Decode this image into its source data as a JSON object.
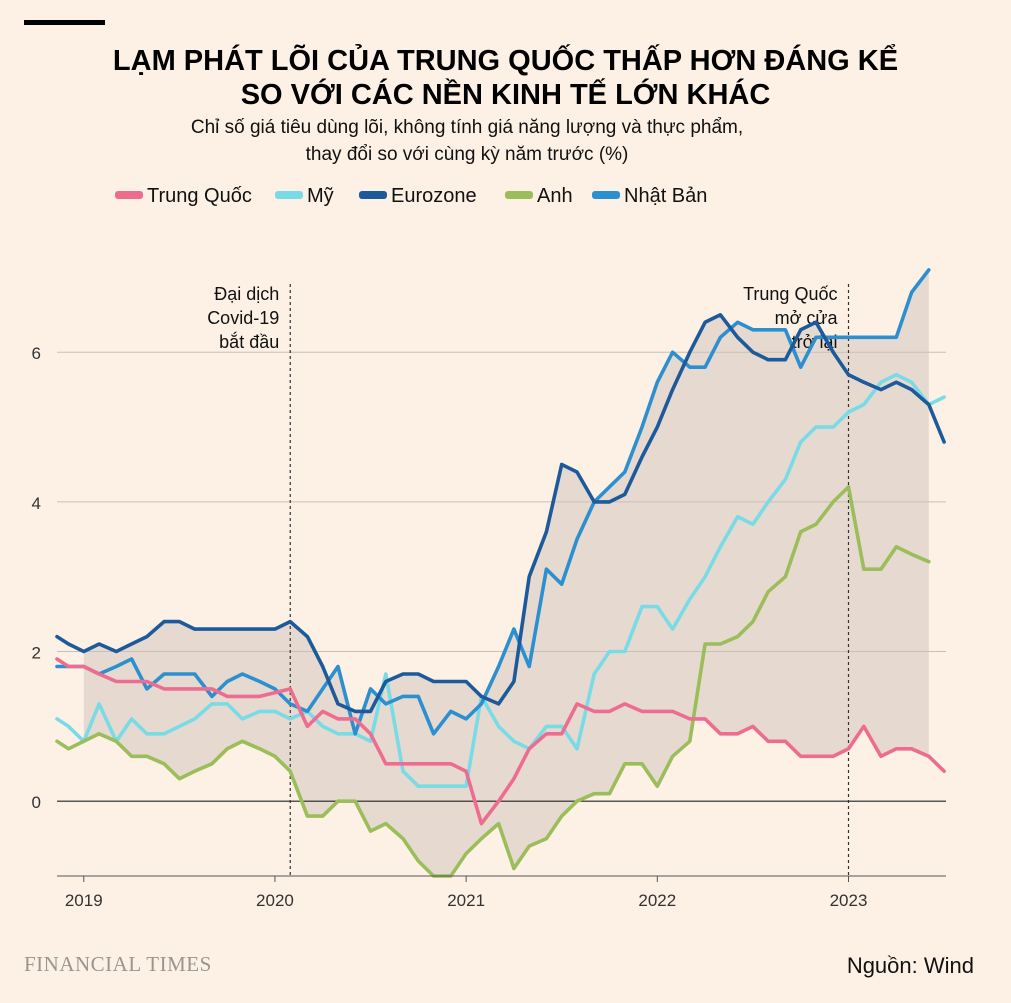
{
  "title_line1": "LẠM PHÁT LÕI CỦA TRUNG QUỐC THẤP HƠN ĐÁNG KỂ",
  "title_line2": "SO VỚI CÁC NỀN KINH TẾ LỚN KHÁC",
  "subtitle_line1": "Chỉ số giá tiêu dùng lõi, không tính giá năng lượng và thực phẩm,",
  "subtitle_line2": "thay đổi so với cùng kỳ năm trước (%)",
  "source": "Nguồn: Wind",
  "brand": "FINANCIAL TIMES",
  "chart_data": {
    "type": "line",
    "title": "LẠM PHÁT LÕI CỦA TRUNG QUỐC THẤP HƠN ĐÁNG KỂ SO VỚI CÁC NỀN KINH TẾ LỚN KHÁC",
    "ylabel": "%",
    "xlim": [
      2018.86,
      2023.51
    ],
    "ylim": [
      -1.0,
      7.5
    ],
    "y_ticks": [
      0,
      2,
      4,
      6
    ],
    "x_ticks": [
      {
        "label": "2019",
        "value": 2019
      },
      {
        "label": "2020",
        "value": 2020
      },
      {
        "label": "2021",
        "value": 2021
      },
      {
        "label": "2022",
        "value": 2022
      },
      {
        "label": "2023",
        "value": 2023
      }
    ],
    "shaded_range": "area between the highest and lowest series values, Jan 2019 – Jun 2023",
    "annotations": [
      {
        "x": 2020.08,
        "lines": [
          "Đại dịch",
          "Covid-19",
          "bắt đầu"
        ],
        "align": "left"
      },
      {
        "x": 2023.0,
        "lines": [
          "Trung Quốc",
          "mở cửa",
          "trở lại"
        ],
        "align": "left"
      }
    ],
    "series": [
      {
        "name": "Trung Quốc",
        "color": "#ed6d91",
        "points": [
          [
            2018.86,
            1.9
          ],
          [
            2018.92,
            1.8
          ],
          [
            2019.0,
            1.8
          ],
          [
            2019.08,
            1.7
          ],
          [
            2019.17,
            1.6
          ],
          [
            2019.33,
            1.6
          ],
          [
            2019.42,
            1.5
          ],
          [
            2019.58,
            1.5
          ],
          [
            2019.67,
            1.5
          ],
          [
            2019.75,
            1.4
          ],
          [
            2019.92,
            1.4
          ],
          [
            2020.08,
            1.5
          ],
          [
            2020.17,
            1.0
          ],
          [
            2020.25,
            1.2
          ],
          [
            2020.33,
            1.1
          ],
          [
            2020.42,
            1.1
          ],
          [
            2020.5,
            0.9
          ],
          [
            2020.58,
            0.5
          ],
          [
            2020.67,
            0.5
          ],
          [
            2020.75,
            0.5
          ],
          [
            2020.83,
            0.5
          ],
          [
            2020.92,
            0.5
          ],
          [
            2021.0,
            0.4
          ],
          [
            2021.08,
            -0.3
          ],
          [
            2021.17,
            0.0
          ],
          [
            2021.25,
            0.3
          ],
          [
            2021.33,
            0.7
          ],
          [
            2021.42,
            0.9
          ],
          [
            2021.5,
            0.9
          ],
          [
            2021.58,
            1.3
          ],
          [
            2021.67,
            1.2
          ],
          [
            2021.75,
            1.2
          ],
          [
            2021.83,
            1.3
          ],
          [
            2021.92,
            1.2
          ],
          [
            2022.0,
            1.2
          ],
          [
            2022.08,
            1.2
          ],
          [
            2022.17,
            1.1
          ],
          [
            2022.25,
            1.1
          ],
          [
            2022.33,
            0.9
          ],
          [
            2022.42,
            0.9
          ],
          [
            2022.5,
            1.0
          ],
          [
            2022.58,
            0.8
          ],
          [
            2022.67,
            0.8
          ],
          [
            2022.75,
            0.6
          ],
          [
            2022.83,
            0.6
          ],
          [
            2022.92,
            0.6
          ],
          [
            2023.0,
            0.7
          ],
          [
            2023.08,
            1.0
          ],
          [
            2023.17,
            0.6
          ],
          [
            2023.25,
            0.7
          ],
          [
            2023.33,
            0.7
          ],
          [
            2023.42,
            0.6
          ],
          [
            2023.5,
            0.4
          ]
        ]
      },
      {
        "name": "Mỹ",
        "color": "#79dbe6",
        "points": [
          [
            2018.86,
            1.1
          ],
          [
            2018.92,
            1.0
          ],
          [
            2019.0,
            0.8
          ],
          [
            2019.08,
            1.3
          ],
          [
            2019.17,
            0.8
          ],
          [
            2019.25,
            1.1
          ],
          [
            2019.33,
            0.9
          ],
          [
            2019.42,
            0.9
          ],
          [
            2019.5,
            1.0
          ],
          [
            2019.58,
            1.1
          ],
          [
            2019.67,
            1.3
          ],
          [
            2019.75,
            1.3
          ],
          [
            2019.83,
            1.1
          ],
          [
            2019.92,
            1.2
          ],
          [
            2020.0,
            1.2
          ],
          [
            2020.08,
            1.1
          ],
          [
            2020.17,
            1.2
          ],
          [
            2020.25,
            1.0
          ],
          [
            2020.33,
            0.9
          ],
          [
            2020.42,
            0.9
          ],
          [
            2020.5,
            0.8
          ],
          [
            2020.58,
            1.7
          ],
          [
            2020.67,
            0.4
          ],
          [
            2020.75,
            0.2
          ],
          [
            2020.83,
            0.2
          ],
          [
            2020.92,
            0.2
          ],
          [
            2021.0,
            0.2
          ],
          [
            2021.08,
            1.4
          ],
          [
            2021.17,
            1.0
          ],
          [
            2021.25,
            0.8
          ],
          [
            2021.33,
            0.7
          ],
          [
            2021.42,
            1.0
          ],
          [
            2021.5,
            1.0
          ],
          [
            2021.58,
            0.7
          ],
          [
            2021.67,
            1.7
          ],
          [
            2021.75,
            2.0
          ],
          [
            2021.83,
            2.0
          ],
          [
            2021.92,
            2.6
          ],
          [
            2022.0,
            2.6
          ],
          [
            2022.08,
            2.3
          ],
          [
            2022.17,
            2.7
          ],
          [
            2022.25,
            3.0
          ],
          [
            2022.33,
            3.4
          ],
          [
            2022.42,
            3.8
          ],
          [
            2022.5,
            3.7
          ],
          [
            2022.58,
            4.0
          ],
          [
            2022.67,
            4.3
          ],
          [
            2022.75,
            4.8
          ],
          [
            2022.83,
            5.0
          ],
          [
            2022.92,
            5.0
          ],
          [
            2023.0,
            5.2
          ],
          [
            2023.08,
            5.3
          ],
          [
            2023.17,
            5.6
          ],
          [
            2023.25,
            5.7
          ],
          [
            2023.33,
            5.6
          ],
          [
            2023.42,
            5.3
          ],
          [
            2023.5,
            5.4
          ]
        ]
      },
      {
        "name": "Eurozone",
        "color": "#1d5a9b",
        "points": [
          [
            2018.86,
            2.2
          ],
          [
            2018.92,
            2.1
          ],
          [
            2019.0,
            2.0
          ],
          [
            2019.08,
            2.1
          ],
          [
            2019.17,
            2.0
          ],
          [
            2019.25,
            2.1
          ],
          [
            2019.33,
            2.2
          ],
          [
            2019.42,
            2.4
          ],
          [
            2019.5,
            2.4
          ],
          [
            2019.58,
            2.3
          ],
          [
            2019.67,
            2.3
          ],
          [
            2019.75,
            2.3
          ],
          [
            2019.83,
            2.3
          ],
          [
            2019.92,
            2.3
          ],
          [
            2020.0,
            2.3
          ],
          [
            2020.08,
            2.4
          ],
          [
            2020.17,
            2.2
          ],
          [
            2020.25,
            1.8
          ],
          [
            2020.33,
            1.3
          ],
          [
            2020.42,
            1.2
          ],
          [
            2020.5,
            1.2
          ],
          [
            2020.58,
            1.6
          ],
          [
            2020.67,
            1.7
          ],
          [
            2020.75,
            1.7
          ],
          [
            2020.83,
            1.6
          ],
          [
            2020.92,
            1.6
          ],
          [
            2021.0,
            1.6
          ],
          [
            2021.08,
            1.4
          ],
          [
            2021.17,
            1.3
          ],
          [
            2021.25,
            1.6
          ],
          [
            2021.33,
            3.0
          ],
          [
            2021.42,
            3.6
          ],
          [
            2021.5,
            4.5
          ],
          [
            2021.58,
            4.4
          ],
          [
            2021.67,
            4.0
          ],
          [
            2021.75,
            4.0
          ],
          [
            2021.83,
            4.1
          ],
          [
            2021.92,
            4.6
          ],
          [
            2022.0,
            5.0
          ],
          [
            2022.08,
            5.5
          ],
          [
            2022.17,
            6.0
          ],
          [
            2022.25,
            6.4
          ],
          [
            2022.33,
            6.5
          ],
          [
            2022.42,
            6.2
          ],
          [
            2022.5,
            6.0
          ],
          [
            2022.58,
            5.9
          ],
          [
            2022.67,
            5.9
          ],
          [
            2022.75,
            6.3
          ],
          [
            2022.83,
            6.4
          ],
          [
            2022.92,
            6.0
          ],
          [
            2023.0,
            5.7
          ],
          [
            2023.08,
            5.6
          ],
          [
            2023.17,
            5.5
          ],
          [
            2023.25,
            5.6
          ],
          [
            2023.33,
            5.5
          ],
          [
            2023.42,
            5.3
          ],
          [
            2023.5,
            4.8
          ]
        ]
      },
      {
        "name": "Anh",
        "color": "#9bbd5a",
        "points": [
          [
            2018.86,
            0.8
          ],
          [
            2018.92,
            0.7
          ],
          [
            2019.0,
            0.8
          ],
          [
            2019.08,
            0.9
          ],
          [
            2019.17,
            0.8
          ],
          [
            2019.25,
            0.6
          ],
          [
            2019.33,
            0.6
          ],
          [
            2019.42,
            0.5
          ],
          [
            2019.5,
            0.3
          ],
          [
            2019.58,
            0.4
          ],
          [
            2019.67,
            0.5
          ],
          [
            2019.75,
            0.7
          ],
          [
            2019.83,
            0.8
          ],
          [
            2019.92,
            0.7
          ],
          [
            2020.0,
            0.6
          ],
          [
            2020.08,
            0.4
          ],
          [
            2020.17,
            -0.2
          ],
          [
            2020.25,
            -0.2
          ],
          [
            2020.33,
            0.0
          ],
          [
            2020.42,
            0.0
          ],
          [
            2020.5,
            -0.4
          ],
          [
            2020.58,
            -0.3
          ],
          [
            2020.67,
            -0.5
          ],
          [
            2020.75,
            -0.8
          ],
          [
            2020.83,
            -1.0
          ],
          [
            2020.92,
            -1.0
          ],
          [
            2021.0,
            -0.7
          ],
          [
            2021.08,
            -0.5
          ],
          [
            2021.17,
            -0.3
          ],
          [
            2021.25,
            -0.9
          ],
          [
            2021.33,
            -0.6
          ],
          [
            2021.42,
            -0.5
          ],
          [
            2021.5,
            -0.2
          ],
          [
            2021.58,
            0.0
          ],
          [
            2021.67,
            0.1
          ],
          [
            2021.75,
            0.1
          ],
          [
            2021.83,
            0.5
          ],
          [
            2021.92,
            0.5
          ],
          [
            2022.0,
            0.2
          ],
          [
            2022.08,
            0.6
          ],
          [
            2022.17,
            0.8
          ],
          [
            2022.25,
            2.1
          ],
          [
            2022.33,
            2.1
          ],
          [
            2022.42,
            2.2
          ],
          [
            2022.5,
            2.4
          ],
          [
            2022.58,
            2.8
          ],
          [
            2022.67,
            3.0
          ],
          [
            2022.75,
            3.6
          ],
          [
            2022.83,
            3.7
          ],
          [
            2022.92,
            4.0
          ],
          [
            2023.0,
            4.2
          ],
          [
            2023.08,
            3.1
          ],
          [
            2023.17,
            3.1
          ],
          [
            2023.25,
            3.4
          ],
          [
            2023.33,
            3.3
          ],
          [
            2023.42,
            3.2
          ]
        ]
      },
      {
        "name": "Nhật Bản",
        "color": "#2c8fd0",
        "points": [
          [
            2018.86,
            1.8
          ],
          [
            2018.92,
            1.8
          ],
          [
            2019.0,
            1.8
          ],
          [
            2019.08,
            1.7
          ],
          [
            2019.17,
            1.8
          ],
          [
            2019.25,
            1.9
          ],
          [
            2019.33,
            1.5
          ],
          [
            2019.42,
            1.7
          ],
          [
            2019.5,
            1.7
          ],
          [
            2019.58,
            1.7
          ],
          [
            2019.67,
            1.4
          ],
          [
            2019.75,
            1.6
          ],
          [
            2019.83,
            1.7
          ],
          [
            2019.92,
            1.6
          ],
          [
            2020.0,
            1.5
          ],
          [
            2020.08,
            1.3
          ],
          [
            2020.17,
            1.2
          ],
          [
            2020.25,
            1.5
          ],
          [
            2020.33,
            1.8
          ],
          [
            2020.42,
            0.9
          ],
          [
            2020.5,
            1.5
          ],
          [
            2020.58,
            1.3
          ],
          [
            2020.67,
            1.4
          ],
          [
            2020.75,
            1.4
          ],
          [
            2020.83,
            0.9
          ],
          [
            2020.92,
            1.2
          ],
          [
            2021.0,
            1.1
          ],
          [
            2021.08,
            1.3
          ],
          [
            2021.17,
            1.8
          ],
          [
            2021.25,
            2.3
          ],
          [
            2021.33,
            1.8
          ],
          [
            2021.42,
            3.1
          ],
          [
            2021.5,
            2.9
          ],
          [
            2021.58,
            3.5
          ],
          [
            2021.67,
            4.0
          ],
          [
            2021.75,
            4.2
          ],
          [
            2021.83,
            4.4
          ],
          [
            2021.92,
            5.0
          ],
          [
            2022.0,
            5.6
          ],
          [
            2022.08,
            6.0
          ],
          [
            2022.17,
            5.8
          ],
          [
            2022.25,
            5.8
          ],
          [
            2022.33,
            6.2
          ],
          [
            2022.42,
            6.4
          ],
          [
            2022.5,
            6.3
          ],
          [
            2022.58,
            6.3
          ],
          [
            2022.67,
            6.3
          ],
          [
            2022.75,
            5.8
          ],
          [
            2022.83,
            6.2
          ],
          [
            2022.92,
            6.2
          ],
          [
            2023.0,
            6.2
          ],
          [
            2023.08,
            6.2
          ],
          [
            2023.17,
            6.2
          ],
          [
            2023.25,
            6.2
          ],
          [
            2023.33,
            6.8
          ],
          [
            2023.42,
            7.1
          ]
        ]
      }
    ]
  }
}
